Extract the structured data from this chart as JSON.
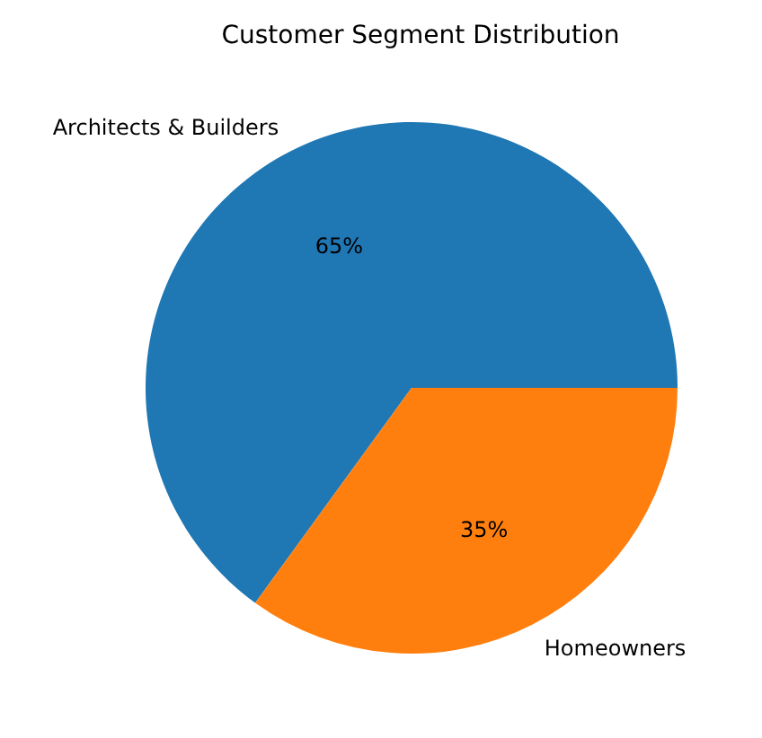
{
  "chart_data": {
    "type": "pie",
    "title": "Customer Segment Distribution",
    "categories": [
      "Architects & Builders",
      "Homeowners"
    ],
    "values": [
      65,
      35
    ],
    "colors": [
      "#1f77b4",
      "#ff7f0e"
    ],
    "value_labels": [
      "65%",
      "35%"
    ],
    "legend": false
  }
}
